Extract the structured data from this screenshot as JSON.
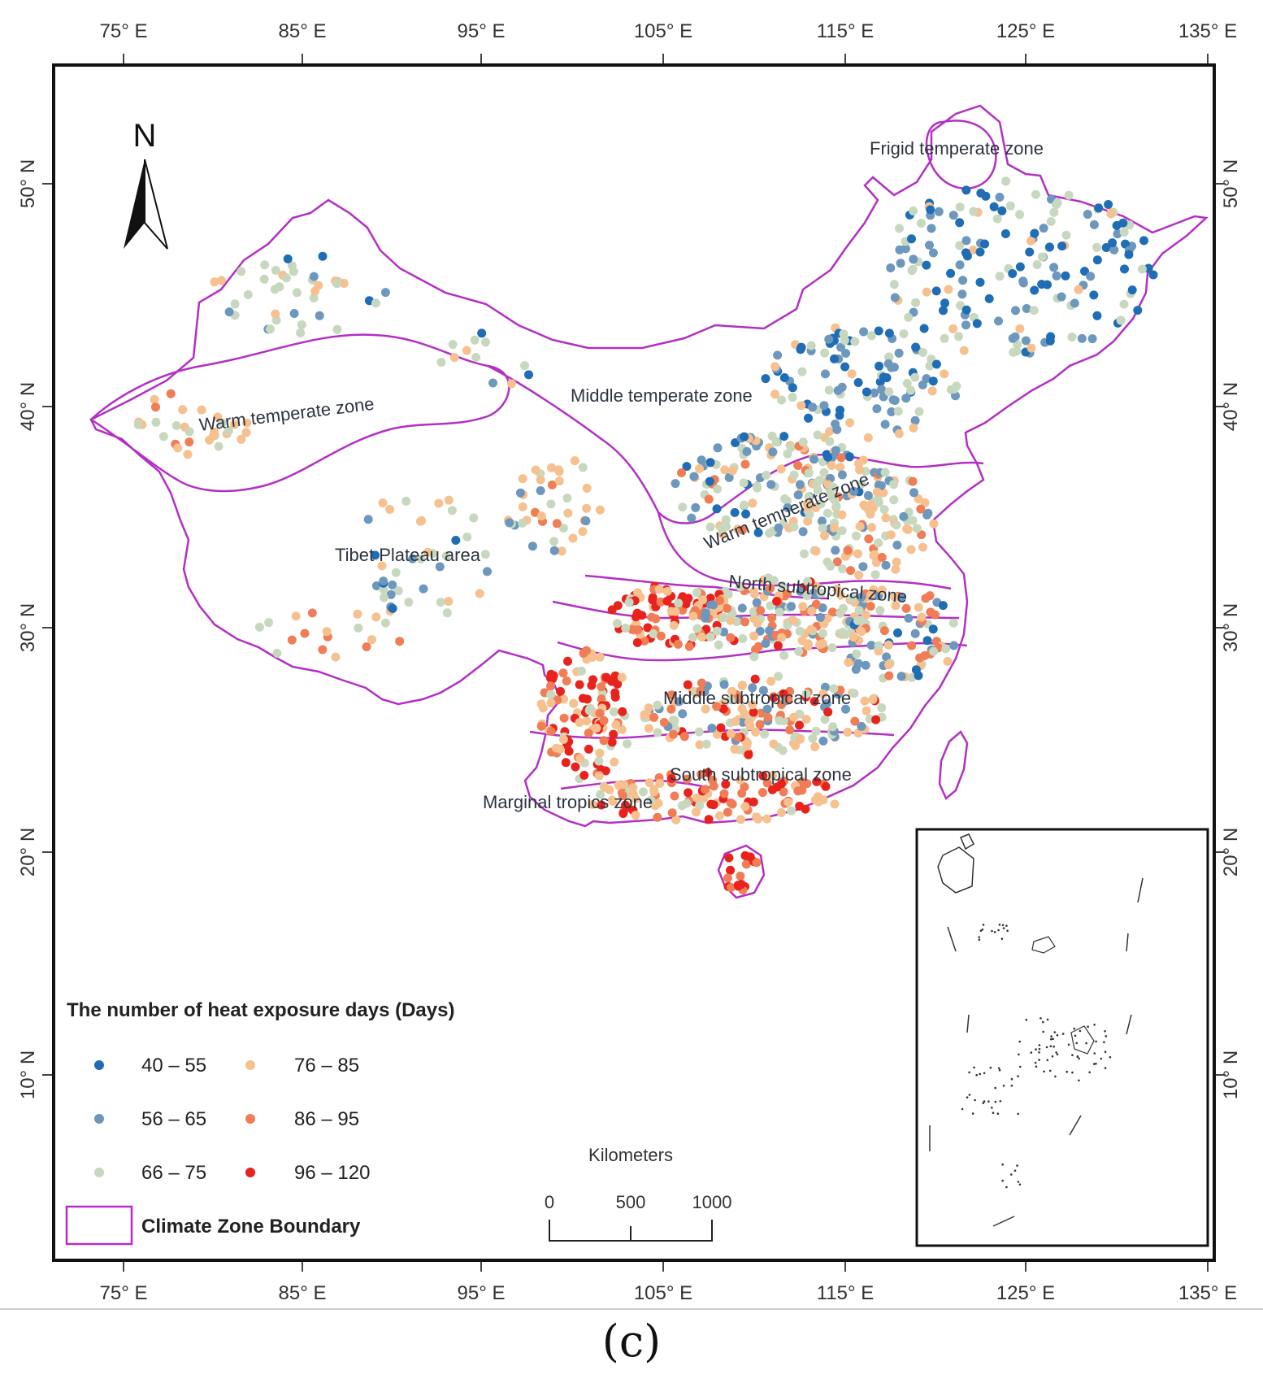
{
  "axes": {
    "longitude_labels": [
      "75° E",
      "85° E",
      "95° E",
      "105° E",
      "115° E",
      "125° E",
      "135° E"
    ],
    "latitude_labels": [
      "50° N",
      "40° N",
      "30° N",
      "20° N",
      "10° N"
    ]
  },
  "north_arrow": {
    "label": "N"
  },
  "zones": [
    "Frigid temperate zone",
    "Warm temperate zone",
    "Middle temperate zone",
    "Tibet Plateau area",
    "Warm temperate zone",
    "North subtropical zone",
    "Middle subtropical zone",
    "South subtropical zone",
    "Marginal tropics zone"
  ],
  "legend": {
    "title": "The number of heat exposure days (Days)",
    "classes": [
      {
        "label": "40 – 55",
        "color": "#1f6db5"
      },
      {
        "label": "56 – 65",
        "color": "#6d97bd"
      },
      {
        "label": "66 – 75",
        "color": "#c8d8bf"
      },
      {
        "label": "76 – 85",
        "color": "#f6c08f"
      },
      {
        "label": "86 – 95",
        "color": "#f07d55"
      },
      {
        "label": "96 – 120",
        "color": "#e8231d"
      }
    ],
    "boundary_label": "Climate Zone Boundary",
    "boundary_color": "#b32fc4"
  },
  "scale_bar": {
    "unit": "Kilometers",
    "ticks": [
      "0",
      "500",
      "1000"
    ]
  },
  "panel_label": "(c)"
}
